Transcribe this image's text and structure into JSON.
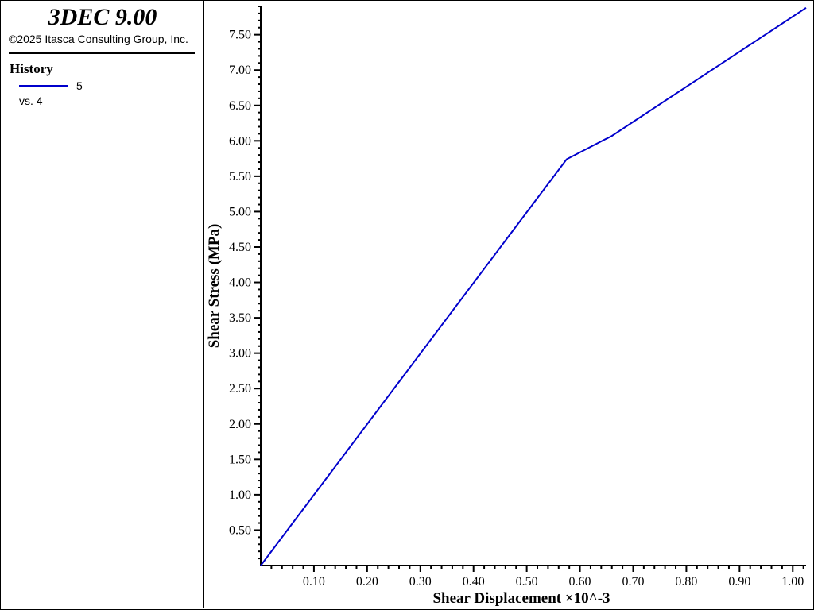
{
  "legend": {
    "app_title": "3DEC 9.00",
    "copyright": "©2025 Itasca Consulting Group, Inc.",
    "history_heading": "History",
    "history_id": "5",
    "history_vs": "vs. 4"
  },
  "chart_data": {
    "type": "line",
    "xlabel": "Shear Displacement ×10^-3",
    "ylabel": "Shear Stress (MPa)",
    "xlim": [
      0,
      1.025
    ],
    "ylim": [
      0,
      7.9
    ],
    "x_ticks": [
      "0.10",
      "0.20",
      "0.30",
      "0.40",
      "0.50",
      "0.60",
      "0.70",
      "0.80",
      "0.90",
      "1.00"
    ],
    "y_ticks": [
      "0.50",
      "1.00",
      "1.50",
      "2.00",
      "2.50",
      "3.00",
      "3.50",
      "4.00",
      "4.50",
      "5.00",
      "5.50",
      "6.00",
      "6.50",
      "7.00",
      "7.50"
    ],
    "grid": false,
    "series": [
      {
        "name": "5",
        "color": "#0000cc",
        "x": [
          0.0,
          0.575,
          0.66,
          1.025
        ],
        "y": [
          0.0,
          5.74,
          6.07,
          7.88
        ]
      }
    ]
  }
}
